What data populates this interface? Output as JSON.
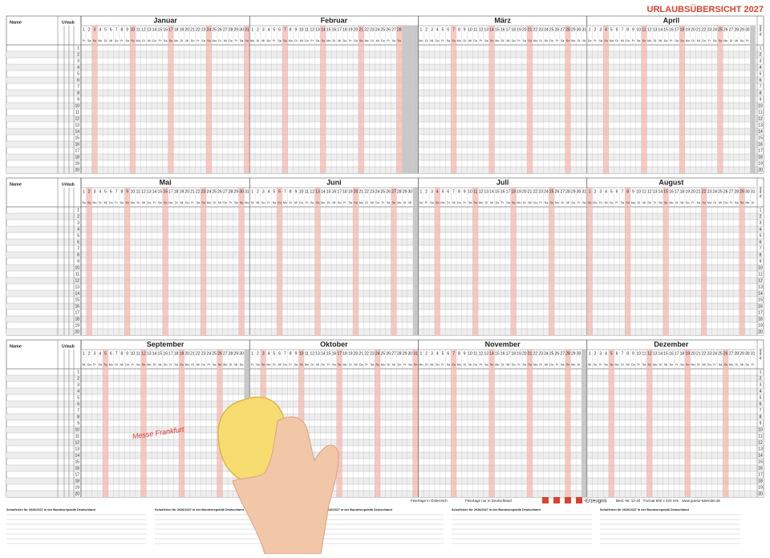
{
  "title": "URLAUBSÜBERSICHT 2027",
  "labels": {
    "name": "Name",
    "urlaub": "Urlaub",
    "row_header": "Zeile-Nr."
  },
  "months": [
    {
      "name": "Januar",
      "days": 31,
      "start": 4
    },
    {
      "name": "Februar",
      "days": 28,
      "start": 0
    },
    {
      "name": "März",
      "days": 31,
      "start": 0
    },
    {
      "name": "April",
      "days": 30,
      "start": 3
    },
    {
      "name": "Mai",
      "days": 31,
      "start": 5
    },
    {
      "name": "Juni",
      "days": 30,
      "start": 1
    },
    {
      "name": "Juli",
      "days": 31,
      "start": 3
    },
    {
      "name": "August",
      "days": 31,
      "start": 6
    },
    {
      "name": "September",
      "days": 30,
      "start": 2
    },
    {
      "name": "Oktober",
      "days": 31,
      "start": 4
    },
    {
      "name": "November",
      "days": 30,
      "start": 0
    },
    {
      "name": "Dezember",
      "days": 31,
      "start": 2
    }
  ],
  "day_numbers": [
    1,
    2,
    3,
    4,
    5,
    6,
    7,
    8,
    9,
    10,
    11,
    12,
    13,
    14,
    15,
    16,
    17,
    18,
    19,
    20,
    21,
    22,
    23,
    24,
    25,
    26,
    27,
    28,
    29,
    30,
    31
  ],
  "weekdays": [
    "Mo",
    "Di",
    "Mi",
    "Do",
    "Fr",
    "Sa",
    "So"
  ],
  "row_numbers": [
    1,
    2,
    3,
    4,
    5,
    6,
    7,
    8,
    9,
    10,
    11,
    12,
    13,
    14,
    15,
    16,
    17,
    18,
    19,
    20
  ],
  "handwriting": "Messe Frankfurt",
  "footer": {
    "legend_at": "Feiertage in Österreich",
    "legend_de": "Feiertage nur in Deutschland",
    "brand": "-Erzeugnis",
    "order": "Best.-Nr. 12-20 · Format 600 x 420 mm · www.guese-kalender.de",
    "school": "Schulferien für 2026/2027 in der Bundesrepublik Deutschland"
  }
}
